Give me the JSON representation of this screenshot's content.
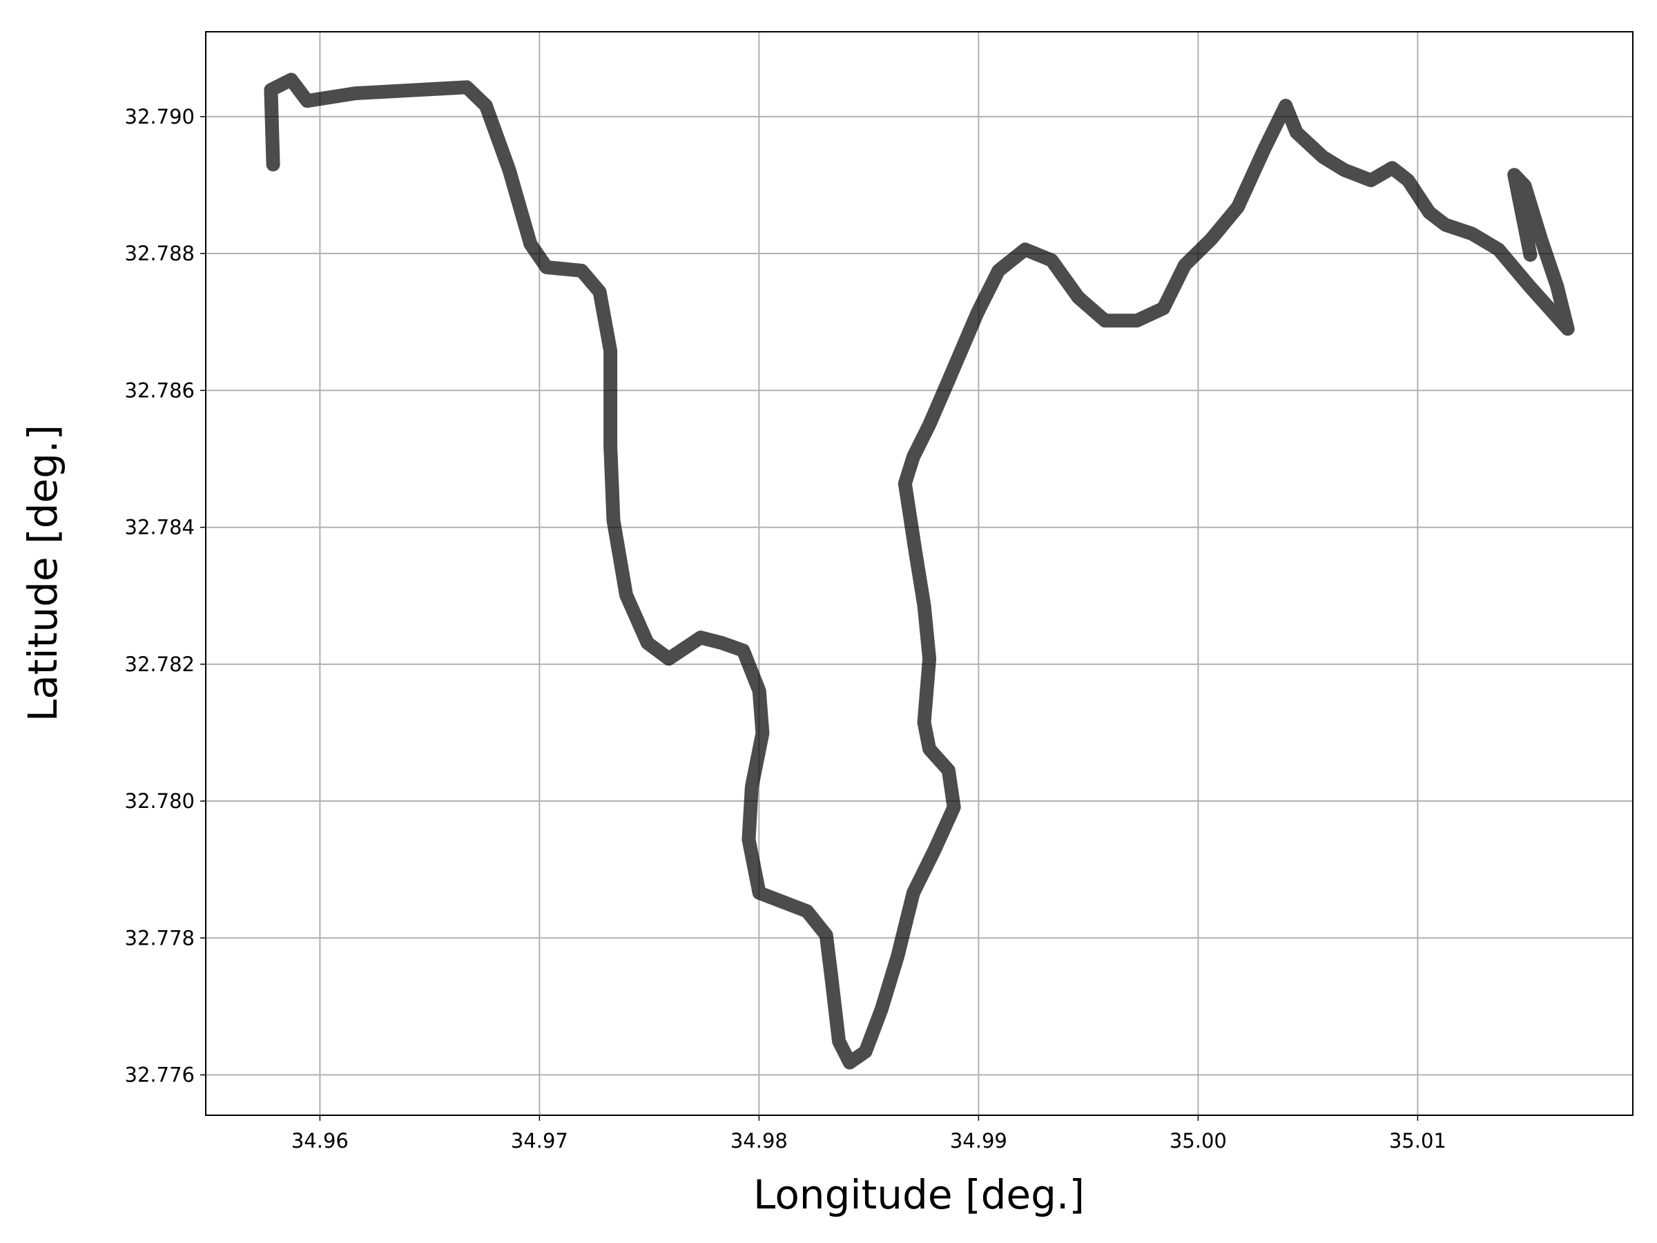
{
  "chart_data": {
    "type": "line",
    "xlabel": "Longitude [deg.]",
    "ylabel": "Latitude [deg.]",
    "x": [
      34.95787,
      34.95777,
      34.95869,
      34.95942,
      34.9616,
      34.96669,
      34.96756,
      34.96862,
      34.96959,
      34.97032,
      34.97192,
      34.97274,
      34.97323,
      34.97323,
      34.97337,
      34.97395,
      34.97492,
      34.97589,
      34.97734,
      34.97831,
      34.97928,
      34.98001,
      34.98016,
      34.97967,
      34.97953,
      34.98001,
      34.98219,
      34.98306,
      34.9833,
      34.98364,
      34.98413,
      34.98485,
      34.98558,
      34.98631,
      34.98703,
      34.988,
      34.98888,
      34.98863,
      34.98776,
      34.98752,
      34.98776,
      34.98752,
      34.98713,
      34.98665,
      34.98703,
      34.98776,
      34.98849,
      34.98921,
      34.98994,
      34.99091,
      34.99212,
      34.99333,
      34.99454,
      34.99576,
      34.99721,
      34.99842,
      34.99939,
      35.0006,
      35.00181,
      35.00302,
      35.00399,
      35.00448,
      35.00569,
      35.00666,
      35.00787,
      35.00884,
      35.00956,
      35.01053,
      35.01126,
      35.01247,
      35.01368,
      35.0151,
      35.01683,
      35.01635,
      35.01562,
      35.01488,
      35.0144,
      35.01513
    ],
    "values": [
      32.7893,
      32.79039,
      32.79054,
      32.79023,
      32.79034,
      32.79043,
      32.79016,
      32.78922,
      32.78814,
      32.7878,
      32.78775,
      32.78744,
      32.78658,
      32.78519,
      32.7841,
      32.78301,
      32.78231,
      32.78208,
      32.78239,
      32.78231,
      32.7822,
      32.78161,
      32.78099,
      32.78021,
      32.77944,
      32.77866,
      32.77839,
      32.77804,
      32.77742,
      32.77649,
      32.77618,
      32.77634,
      32.77696,
      32.77773,
      32.77866,
      32.77929,
      32.77991,
      32.78045,
      32.78076,
      32.78115,
      32.78208,
      32.78286,
      32.78363,
      32.78464,
      32.78503,
      32.7855,
      32.78604,
      32.78658,
      32.78713,
      32.78775,
      32.78806,
      32.7879,
      32.78736,
      32.78702,
      32.78702,
      32.7872,
      32.78783,
      32.78821,
      32.78868,
      32.78953,
      32.79016,
      32.78977,
      32.78941,
      32.78922,
      32.78907,
      32.78925,
      32.78907,
      32.7886,
      32.78842,
      32.78829,
      32.78806,
      32.78752,
      32.7869,
      32.78752,
      32.78821,
      32.78899,
      32.78915,
      32.78798
    ],
    "color": "#000000",
    "alpha": 0.7,
    "xlim": [
      34.9548,
      35.0198
    ],
    "ylim": [
      32.77541,
      32.79124
    ],
    "xticks": [
      34.96,
      34.97,
      34.98,
      34.99,
      {
        "value": 35,
        "label": "35.00"
      },
      35.01
    ],
    "yticks": [
      32.776,
      32.778,
      {
        "value": 32.78,
        "label": "32.780"
      },
      32.782,
      32.784,
      32.786,
      32.788,
      {
        "value": 32.79,
        "label": "32.790"
      }
    ],
    "grid": true
  }
}
